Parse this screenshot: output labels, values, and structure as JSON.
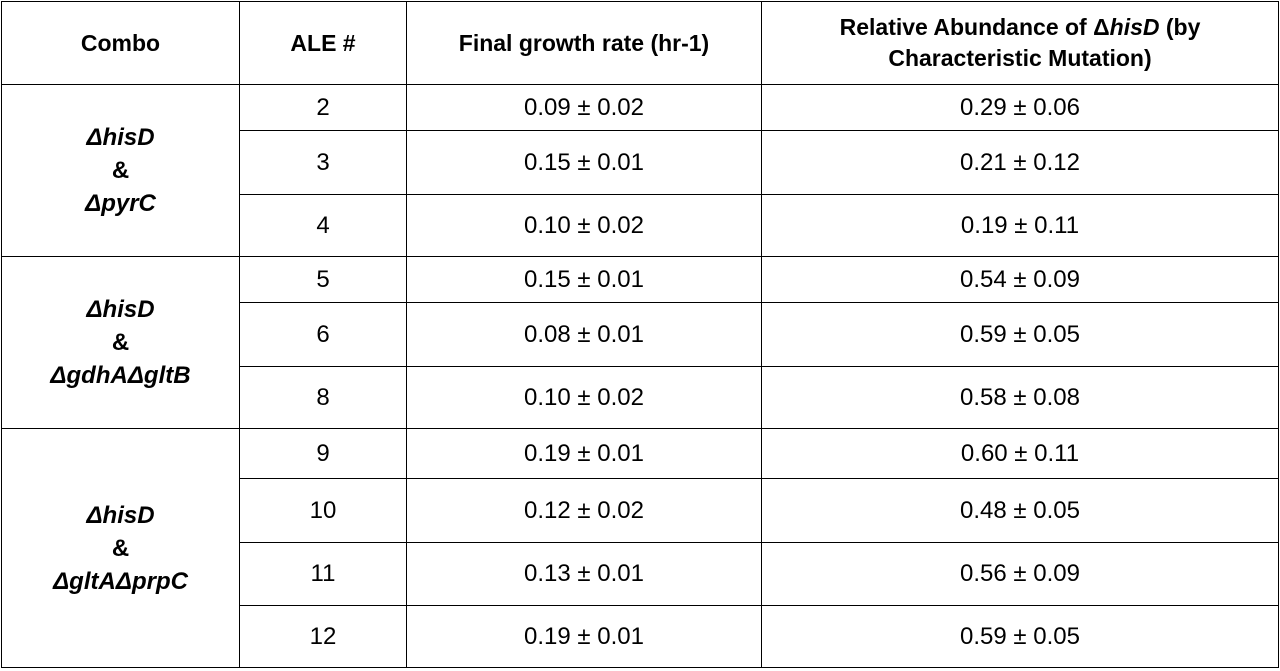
{
  "table": {
    "headers": {
      "combo": "Combo",
      "ale": "ALE #",
      "growth": "Final growth rate (hr-1)",
      "abundance_prefix": "Relative Abundance of Δ",
      "abundance_gene": "hisD",
      "abundance_suffix": " (by",
      "abundance_line2": "Characteristic Mutation)"
    },
    "groups": [
      {
        "combo_line1": "ΔhisD",
        "combo_amp": "&",
        "combo_line3": "ΔpyrC",
        "rows": [
          {
            "ale": "2",
            "growth": "0.09 ± 0.02",
            "abundance": "0.29 ± 0.06"
          },
          {
            "ale": "3",
            "growth": "0.15 ± 0.01",
            "abundance": "0.21 ± 0.12"
          },
          {
            "ale": "4",
            "growth": "0.10 ± 0.02",
            "abundance": "0.19 ± 0.11"
          }
        ]
      },
      {
        "combo_line1": "ΔhisD",
        "combo_amp": "&",
        "combo_line3": "ΔgdhAΔgltB",
        "rows": [
          {
            "ale": "5",
            "growth": "0.15 ± 0.01",
            "abundance": "0.54 ± 0.09"
          },
          {
            "ale": "6",
            "growth": "0.08 ± 0.01",
            "abundance": "0.59 ± 0.05"
          },
          {
            "ale": "8",
            "growth": "0.10 ± 0.02",
            "abundance": "0.58 ± 0.08"
          }
        ]
      },
      {
        "combo_line1": "ΔhisD",
        "combo_amp": "&",
        "combo_line3": "ΔgltAΔprpC",
        "rows": [
          {
            "ale": "9",
            "growth": "0.19 ± 0.01",
            "abundance": "0.60 ± 0.11"
          },
          {
            "ale": "10",
            "growth": "0.12 ± 0.02",
            "abundance": "0.48 ± 0.05"
          },
          {
            "ale": "11",
            "growth": "0.13 ± 0.01",
            "abundance": "0.56 ± 0.09"
          },
          {
            "ale": "12",
            "growth": "0.19 ± 0.01",
            "abundance": "0.59 ± 0.05"
          }
        ]
      }
    ]
  }
}
